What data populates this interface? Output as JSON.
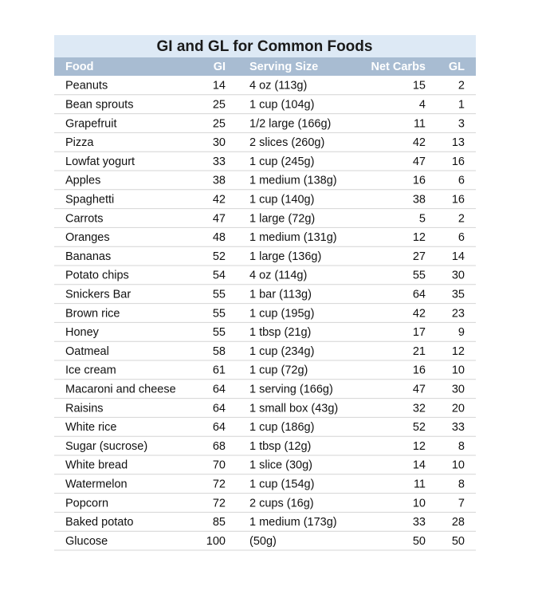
{
  "table": {
    "title": "GI and GL for Common Foods",
    "columns": [
      "Food",
      "GI",
      "Serving Size",
      "Net Carbs",
      "GL"
    ],
    "rows": [
      [
        "Peanuts",
        14,
        "4 oz (113g)",
        15,
        2
      ],
      [
        "Bean sprouts",
        25,
        "1 cup (104g)",
        4,
        1
      ],
      [
        "Grapefruit",
        25,
        "1/2 large (166g)",
        11,
        3
      ],
      [
        "Pizza",
        30,
        "2 slices (260g)",
        42,
        13
      ],
      [
        "Lowfat yogurt",
        33,
        "1 cup (245g)",
        47,
        16
      ],
      [
        "Apples",
        38,
        "1 medium (138g)",
        16,
        6
      ],
      [
        "Spaghetti",
        42,
        "1 cup (140g)",
        38,
        16
      ],
      [
        "Carrots",
        47,
        "1 large (72g)",
        5,
        2
      ],
      [
        "Oranges",
        48,
        "1 medium (131g)",
        12,
        6
      ],
      [
        "Bananas",
        52,
        "1 large (136g)",
        27,
        14
      ],
      [
        "Potato chips",
        54,
        "4 oz (114g)",
        55,
        30
      ],
      [
        "Snickers Bar",
        55,
        "1 bar (113g)",
        64,
        35
      ],
      [
        "Brown rice",
        55,
        "1 cup (195g)",
        42,
        23
      ],
      [
        "Honey",
        55,
        "1 tbsp (21g)",
        17,
        9
      ],
      [
        "Oatmeal",
        58,
        "1 cup (234g)",
        21,
        12
      ],
      [
        "Ice cream",
        61,
        "1 cup (72g)",
        16,
        10
      ],
      [
        "Macaroni and cheese",
        64,
        "1 serving (166g)",
        47,
        30
      ],
      [
        "Raisins",
        64,
        "1 small box (43g)",
        32,
        20
      ],
      [
        "White rice",
        64,
        "1 cup (186g)",
        52,
        33
      ],
      [
        "Sugar (sucrose)",
        68,
        "1 tbsp (12g)",
        12,
        8
      ],
      [
        "White bread",
        70,
        "1 slice (30g)",
        14,
        10
      ],
      [
        "Watermelon",
        72,
        "1 cup (154g)",
        11,
        8
      ],
      [
        "Popcorn",
        72,
        "2 cups (16g)",
        10,
        7
      ],
      [
        "Baked potato",
        85,
        "1 medium (173g)",
        33,
        28
      ],
      [
        "Glucose",
        100,
        "(50g)",
        50,
        50
      ]
    ]
  }
}
